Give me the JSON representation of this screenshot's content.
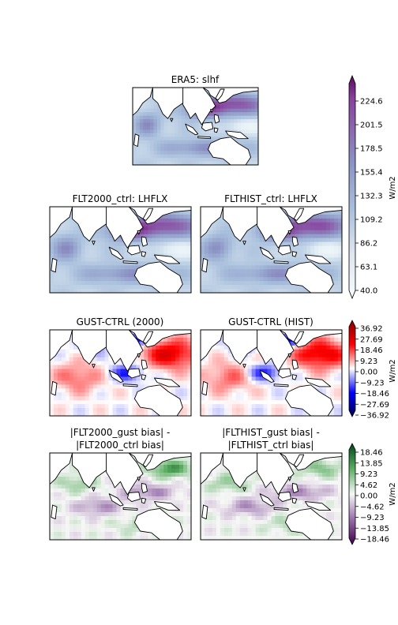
{
  "chart_data": [
    {
      "type": "heatmap",
      "title": "ERA5: slhf",
      "field": "mean"
    },
    {
      "type": "heatmap",
      "title": "FLT2000_ctrl: LHFLX",
      "field": "mean"
    },
    {
      "type": "heatmap",
      "title": "FLTHIST_ctrl: LHFLX",
      "field": "mean"
    },
    {
      "type": "heatmap",
      "title": "GUST-CTRL (2000)",
      "field": "diff"
    },
    {
      "type": "heatmap",
      "title": "GUST-CTRL (HIST)",
      "field": "diff"
    },
    {
      "type": "heatmap",
      "title_lines": [
        "|FLT2000_gust bias| -",
        "|FLT2000_ctrl bias|"
      ],
      "field": "bias"
    },
    {
      "type": "heatmap",
      "title_lines": [
        "|FLTHIST_gust bias| -",
        "|FLTHIST_ctrl bias|"
      ],
      "field": "bias"
    }
  ],
  "colorbars": [
    {
      "label": "W/m2",
      "colormap": "BuPu",
      "range": [
        40.0,
        224.6
      ],
      "ticks": [
        "40.0",
        "63.1",
        "86.2",
        "109.2",
        "132.3",
        "155.4",
        "178.5",
        "201.5",
        "224.6"
      ]
    },
    {
      "label": "W/m2",
      "colormap": "seismic",
      "range": [
        -36.92,
        36.92
      ],
      "ticks": [
        "−36.92",
        "−27.69",
        "−18.46",
        "−9.23",
        "0.00",
        "9.23",
        "18.46",
        "27.69",
        "36.92"
      ]
    },
    {
      "label": "W/m2",
      "colormap": "PRGn",
      "range": [
        -18.46,
        18.46
      ],
      "ticks": [
        "−18.46",
        "−13.85",
        "−9.23",
        "−4.62",
        "0.00",
        "4.62",
        "9.23",
        "13.85",
        "18.46"
      ]
    }
  ],
  "colors": {
    "bupu_low": "#f7fcfd",
    "bupu_high": "#4d004b",
    "seismic_low": "#00004c",
    "seismic_mid": "#ffffff",
    "seismic_high": "#800000",
    "prgn_low": "#40004b",
    "prgn_mid": "#f7f7f7",
    "prgn_high": "#00441b",
    "land": "#ffffff",
    "coast": "#000000"
  }
}
